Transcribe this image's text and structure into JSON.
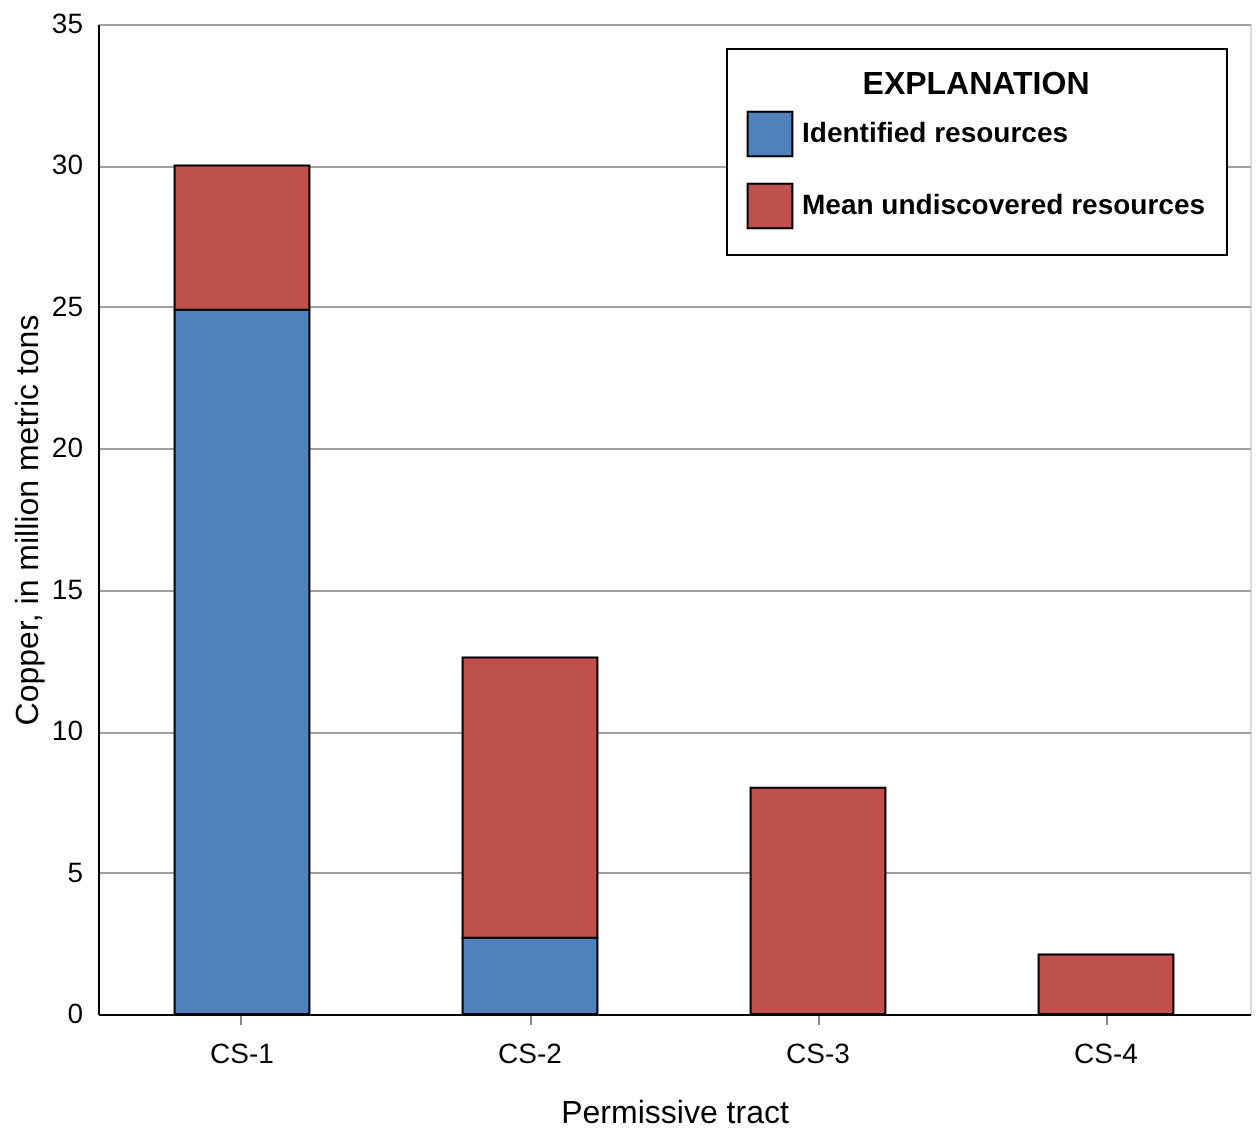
{
  "chart_data": {
    "type": "bar",
    "stacked": true,
    "xlabel": "Permissive tract",
    "ylabel": "Copper, in million metric tons",
    "legend_title": "EXPLANATION",
    "categories": [
      "CS-1",
      "CS-2",
      "CS-3",
      "CS-4"
    ],
    "series": [
      {
        "name": "Identified resources",
        "color": "#4f81bd",
        "values": [
          24.9,
          2.7,
          null,
          null
        ]
      },
      {
        "name": "Mean undiscovered resources",
        "color": "#c0504d",
        "values": [
          5.1,
          9.9,
          8.0,
          2.1
        ]
      }
    ],
    "ylim": [
      0,
      35
    ],
    "yticks": [
      0,
      5,
      10,
      15,
      20,
      25,
      30,
      35
    ],
    "grid": "y",
    "legend": "top right"
  }
}
